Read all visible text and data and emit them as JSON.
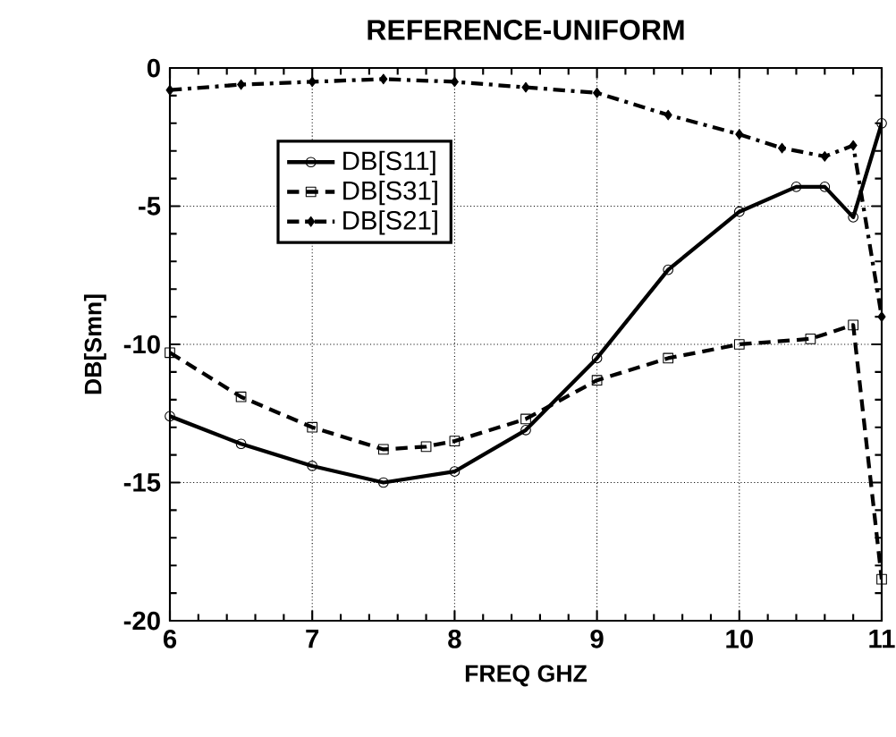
{
  "chart_data": {
    "type": "line",
    "title": "REFERENCE-UNIFORM",
    "xlabel": "FREQ   GHZ",
    "ylabel": "DB[Smn]",
    "xlim": [
      6,
      11
    ],
    "ylim": [
      -20,
      0
    ],
    "xticks": [
      6,
      7,
      8,
      9,
      10,
      11
    ],
    "yticks": [
      -20,
      -15,
      -10,
      -5,
      0
    ],
    "grid": true,
    "legend": "top left",
    "series": [
      {
        "name": "DB[S11]",
        "color": "#000000",
        "marker": "circle",
        "line_style": "solid",
        "x": [
          6,
          6.5,
          7,
          7.5,
          8,
          8.5,
          9,
          9.5,
          10,
          10.4,
          10.6,
          10.8,
          11
        ],
        "values": [
          -12.6,
          -13.6,
          -14.4,
          -15.0,
          -14.6,
          -13.1,
          -10.5,
          -7.3,
          -5.2,
          -4.3,
          -4.3,
          -5.4,
          -2.0
        ]
      },
      {
        "name": "DB[S31]",
        "color": "#000000",
        "marker": "square",
        "line_style": "dashed",
        "x": [
          6,
          6.5,
          7,
          7.5,
          7.8,
          8,
          8.5,
          9,
          9.5,
          10,
          10.5,
          10.8,
          11
        ],
        "values": [
          -10.3,
          -11.9,
          -13.0,
          -13.8,
          -13.7,
          -13.5,
          -12.7,
          -11.3,
          -10.5,
          -10.0,
          -9.8,
          -9.3,
          -18.5
        ]
      },
      {
        "name": "DB[S21]",
        "color": "#000000",
        "marker": "diamond",
        "line_style": "dashdot",
        "x": [
          6,
          6.5,
          7,
          7.5,
          8,
          8.5,
          9,
          9.5,
          10,
          10.3,
          10.6,
          10.8,
          11
        ],
        "values": [
          -0.8,
          -0.6,
          -0.5,
          -0.4,
          -0.5,
          -0.7,
          -0.9,
          -1.7,
          -2.4,
          -2.9,
          -3.2,
          -2.8,
          -9.0
        ]
      }
    ]
  }
}
